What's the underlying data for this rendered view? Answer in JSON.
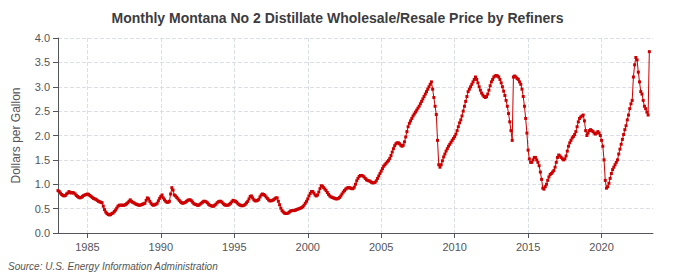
{
  "chart_data": {
    "type": "line",
    "title": "Monthly Montana No 2 Distillate Wholesale/Resale Price by Refiners",
    "ylabel": "Dollars per Gallon",
    "annotation": "Source: U.S. Energy Information Administration",
    "color": "#cc0000",
    "marker": "square",
    "line_style": "solid",
    "grid": true,
    "xlim": [
      1983,
      2023.5
    ],
    "xticks": [
      1985,
      1990,
      1995,
      2000,
      2005,
      2010,
      2015,
      2020
    ],
    "ylim": [
      0.0,
      4.0
    ],
    "yticks": [
      {
        "value": 0.0,
        "label": "0.0"
      },
      0.5,
      {
        "value": 1.0,
        "label": "1.0"
      },
      1.5,
      {
        "value": 2.0,
        "label": "2.0"
      },
      2.5,
      {
        "value": 3.0,
        "label": "3.0"
      },
      3.5,
      {
        "value": 4.0,
        "label": "4.0"
      }
    ],
    "x": [
      1983.0,
      1983.083,
      1983.167,
      1983.25,
      1983.333,
      1983.417,
      1983.5,
      1983.583,
      1983.667,
      1983.75,
      1983.833,
      1983.917,
      1984.0,
      1984.083,
      1984.167,
      1984.25,
      1984.333,
      1984.417,
      1984.5,
      1984.583,
      1984.667,
      1984.75,
      1984.833,
      1984.917,
      1985.0,
      1985.083,
      1985.167,
      1985.25,
      1985.333,
      1985.417,
      1985.5,
      1985.583,
      1985.667,
      1985.75,
      1985.833,
      1985.917,
      1986.0,
      1986.083,
      1986.167,
      1986.25,
      1986.333,
      1986.417,
      1986.5,
      1986.583,
      1986.667,
      1986.75,
      1986.833,
      1986.917,
      1987.0,
      1987.083,
      1987.167,
      1987.25,
      1987.333,
      1987.417,
      1987.5,
      1987.583,
      1987.667,
      1987.75,
      1987.833,
      1987.917,
      1988.0,
      1988.083,
      1988.167,
      1988.25,
      1988.333,
      1988.417,
      1988.5,
      1988.583,
      1988.667,
      1988.75,
      1988.833,
      1988.917,
      1989.0,
      1989.083,
      1989.167,
      1989.25,
      1989.333,
      1989.417,
      1989.5,
      1989.583,
      1989.667,
      1989.75,
      1989.833,
      1989.917,
      1990.0,
      1990.083,
      1990.167,
      1990.25,
      1990.333,
      1990.417,
      1990.5,
      1990.583,
      1990.667,
      1990.75,
      1990.833,
      1990.917,
      1991.0,
      1991.083,
      1991.167,
      1991.25,
      1991.333,
      1991.417,
      1991.5,
      1991.583,
      1991.667,
      1991.75,
      1991.833,
      1991.917,
      1992.0,
      1992.083,
      1992.167,
      1992.25,
      1992.333,
      1992.417,
      1992.5,
      1992.583,
      1992.667,
      1992.75,
      1992.833,
      1992.917,
      1993.0,
      1993.083,
      1993.167,
      1993.25,
      1993.333,
      1993.417,
      1993.5,
      1993.583,
      1993.667,
      1993.75,
      1993.833,
      1993.917,
      1994.0,
      1994.083,
      1994.167,
      1994.25,
      1994.333,
      1994.417,
      1994.5,
      1994.583,
      1994.667,
      1994.75,
      1994.833,
      1994.917,
      1995.0,
      1995.083,
      1995.167,
      1995.25,
      1995.333,
      1995.417,
      1995.5,
      1995.583,
      1995.667,
      1995.75,
      1995.833,
      1995.917,
      1996.0,
      1996.083,
      1996.167,
      1996.25,
      1996.333,
      1996.417,
      1996.5,
      1996.583,
      1996.667,
      1996.75,
      1996.833,
      1996.917,
      1997.0,
      1997.083,
      1997.167,
      1997.25,
      1997.333,
      1997.417,
      1997.5,
      1997.583,
      1997.667,
      1997.75,
      1997.833,
      1997.917,
      1998.0,
      1998.083,
      1998.167,
      1998.25,
      1998.333,
      1998.417,
      1998.5,
      1998.583,
      1998.667,
      1998.75,
      1998.833,
      1998.917,
      1999.0,
      1999.083,
      1999.167,
      1999.25,
      1999.333,
      1999.417,
      1999.5,
      1999.583,
      1999.667,
      1999.75,
      1999.833,
      1999.917,
      2000.0,
      2000.083,
      2000.167,
      2000.25,
      2000.333,
      2000.417,
      2000.5,
      2000.583,
      2000.667,
      2000.75,
      2000.833,
      2000.917,
      2001.0,
      2001.083,
      2001.167,
      2001.25,
      2001.333,
      2001.417,
      2001.5,
      2001.583,
      2001.667,
      2001.75,
      2001.833,
      2001.917,
      2002.0,
      2002.083,
      2002.167,
      2002.25,
      2002.333,
      2002.417,
      2002.5,
      2002.583,
      2002.667,
      2002.75,
      2002.833,
      2002.917,
      2003.0,
      2003.083,
      2003.167,
      2003.25,
      2003.333,
      2003.417,
      2003.5,
      2003.583,
      2003.667,
      2003.75,
      2003.833,
      2003.917,
      2004.0,
      2004.083,
      2004.167,
      2004.25,
      2004.333,
      2004.417,
      2004.5,
      2004.583,
      2004.667,
      2004.75,
      2004.833,
      2004.917,
      2005.0,
      2005.083,
      2005.167,
      2005.25,
      2005.333,
      2005.417,
      2005.5,
      2005.583,
      2005.667,
      2005.75,
      2005.833,
      2005.917,
      2006.0,
      2006.083,
      2006.167,
      2006.25,
      2006.333,
      2006.417,
      2006.5,
      2006.583,
      2006.667,
      2006.75,
      2006.833,
      2006.917,
      2007.0,
      2007.083,
      2007.167,
      2007.25,
      2007.333,
      2007.417,
      2007.5,
      2007.583,
      2007.667,
      2007.75,
      2007.833,
      2007.917,
      2008.0,
      2008.083,
      2008.167,
      2008.25,
      2008.333,
      2008.417,
      2008.5,
      2008.583,
      2008.667,
      2008.75,
      2008.833,
      2008.917,
      2009.0,
      2009.083,
      2009.167,
      2009.25,
      2009.333,
      2009.417,
      2009.5,
      2009.583,
      2009.667,
      2009.75,
      2009.833,
      2009.917,
      2010.0,
      2010.083,
      2010.167,
      2010.25,
      2010.333,
      2010.417,
      2010.5,
      2010.583,
      2010.667,
      2010.75,
      2010.833,
      2010.917,
      2011.0,
      2011.083,
      2011.167,
      2011.25,
      2011.333,
      2011.417,
      2011.5,
      2011.583,
      2011.667,
      2011.75,
      2011.833,
      2011.917,
      2012.0,
      2012.083,
      2012.167,
      2012.25,
      2012.333,
      2012.417,
      2012.5,
      2012.583,
      2012.667,
      2012.75,
      2012.833,
      2012.917,
      2013.0,
      2013.083,
      2013.167,
      2013.25,
      2013.333,
      2013.417,
      2013.5,
      2013.583,
      2013.667,
      2013.75,
      2013.833,
      2013.917,
      2014.0,
      2014.083,
      2014.167,
      2014.25,
      2014.333,
      2014.417,
      2014.5,
      2014.583,
      2014.667,
      2014.75,
      2014.833,
      2014.917,
      2015.0,
      2015.083,
      2015.167,
      2015.25,
      2015.333,
      2015.417,
      2015.5,
      2015.583,
      2015.667,
      2015.75,
      2015.833,
      2015.917,
      2016.0,
      2016.083,
      2016.167,
      2016.25,
      2016.333,
      2016.417,
      2016.5,
      2016.583,
      2016.667,
      2016.75,
      2016.833,
      2016.917,
      2017.0,
      2017.083,
      2017.167,
      2017.25,
      2017.333,
      2017.417,
      2017.5,
      2017.583,
      2017.667,
      2017.75,
      2017.833,
      2017.917,
      2018.0,
      2018.083,
      2018.167,
      2018.25,
      2018.333,
      2018.417,
      2018.5,
      2018.583,
      2018.667,
      2018.75,
      2018.833,
      2018.917,
      2019.0,
      2019.083,
      2019.167,
      2019.25,
      2019.333,
      2019.417,
      2019.5,
      2019.583,
      2019.667,
      2019.75,
      2019.833,
      2019.917,
      2020.0,
      2020.083,
      2020.167,
      2020.25,
      2020.333,
      2020.417,
      2020.5,
      2020.583,
      2020.667,
      2020.75,
      2020.833,
      2020.917,
      2021.0,
      2021.083,
      2021.167,
      2021.25,
      2021.333,
      2021.417,
      2021.5,
      2021.583,
      2021.667,
      2021.75,
      2021.833,
      2021.917,
      2022.0,
      2022.083,
      2022.167,
      2022.25,
      2022.333,
      2022.417,
      2022.5,
      2022.583,
      2022.667,
      2022.75,
      2022.833,
      2022.917,
      2023.0,
      2023.083,
      2023.167,
      2023.25
    ],
    "values": [
      0.87,
      0.85,
      0.82,
      0.79,
      0.77,
      0.76,
      0.77,
      0.8,
      0.82,
      0.85,
      0.83,
      0.82,
      0.83,
      0.82,
      0.8,
      0.77,
      0.75,
      0.73,
      0.72,
      0.73,
      0.75,
      0.77,
      0.78,
      0.79,
      0.8,
      0.79,
      0.77,
      0.75,
      0.73,
      0.71,
      0.7,
      0.69,
      0.67,
      0.65,
      0.64,
      0.63,
      0.62,
      0.55,
      0.48,
      0.43,
      0.4,
      0.38,
      0.37,
      0.38,
      0.4,
      0.41,
      0.44,
      0.47,
      0.51,
      0.55,
      0.57,
      0.57,
      0.57,
      0.57,
      0.57,
      0.58,
      0.6,
      0.62,
      0.65,
      0.68,
      0.65,
      0.63,
      0.62,
      0.6,
      0.59,
      0.58,
      0.57,
      0.57,
      0.58,
      0.59,
      0.6,
      0.61,
      0.67,
      0.72,
      0.7,
      0.65,
      0.61,
      0.58,
      0.57,
      0.58,
      0.59,
      0.61,
      0.66,
      0.71,
      0.75,
      0.78,
      0.72,
      0.68,
      0.65,
      0.63,
      0.63,
      0.65,
      0.8,
      0.93,
      0.88,
      0.78,
      0.76,
      0.73,
      0.7,
      0.67,
      0.64,
      0.62,
      0.61,
      0.62,
      0.63,
      0.65,
      0.67,
      0.68,
      0.68,
      0.66,
      0.63,
      0.6,
      0.59,
      0.58,
      0.57,
      0.57,
      0.59,
      0.61,
      0.63,
      0.65,
      0.65,
      0.64,
      0.62,
      0.59,
      0.57,
      0.56,
      0.55,
      0.55,
      0.57,
      0.59,
      0.62,
      0.64,
      0.65,
      0.65,
      0.63,
      0.6,
      0.58,
      0.57,
      0.57,
      0.57,
      0.59,
      0.61,
      0.64,
      0.67,
      0.66,
      0.65,
      0.63,
      0.6,
      0.58,
      0.57,
      0.56,
      0.56,
      0.57,
      0.59,
      0.62,
      0.65,
      0.7,
      0.75,
      0.76,
      0.72,
      0.68,
      0.66,
      0.66,
      0.67,
      0.69,
      0.74,
      0.78,
      0.8,
      0.79,
      0.77,
      0.74,
      0.71,
      0.68,
      0.66,
      0.66,
      0.67,
      0.68,
      0.7,
      0.72,
      0.72,
      0.65,
      0.58,
      0.51,
      0.46,
      0.43,
      0.41,
      0.4,
      0.4,
      0.41,
      0.43,
      0.45,
      0.46,
      0.46,
      0.46,
      0.47,
      0.48,
      0.49,
      0.5,
      0.51,
      0.52,
      0.54,
      0.57,
      0.61,
      0.65,
      0.7,
      0.76,
      0.81,
      0.85,
      0.85,
      0.82,
      0.78,
      0.76,
      0.78,
      0.84,
      0.91,
      0.97,
      0.96,
      0.93,
      0.9,
      0.87,
      0.83,
      0.79,
      0.76,
      0.74,
      0.73,
      0.72,
      0.71,
      0.7,
      0.7,
      0.71,
      0.73,
      0.76,
      0.8,
      0.84,
      0.87,
      0.9,
      0.92,
      0.93,
      0.93,
      0.92,
      0.91,
      0.91,
      0.94,
      1.0,
      1.07,
      1.12,
      1.16,
      1.18,
      1.18,
      1.17,
      1.15,
      1.12,
      1.09,
      1.08,
      1.07,
      1.06,
      1.04,
      1.03,
      1.03,
      1.04,
      1.07,
      1.12,
      1.17,
      1.22,
      1.27,
      1.32,
      1.37,
      1.4,
      1.43,
      1.46,
      1.49,
      1.53,
      1.59,
      1.66,
      1.73,
      1.79,
      1.83,
      1.85,
      1.85,
      1.83,
      1.8,
      1.78,
      1.8,
      1.87,
      1.97,
      2.08,
      2.18,
      2.25,
      2.3,
      2.35,
      2.4,
      2.44,
      2.48,
      2.52,
      2.56,
      2.6,
      2.65,
      2.7,
      2.75,
      2.8,
      2.85,
      2.9,
      2.95,
      3.0,
      3.05,
      3.1,
      2.95,
      2.78,
      2.6,
      2.43,
      1.9,
      1.4,
      1.35,
      1.4,
      1.48,
      1.56,
      1.62,
      1.68,
      1.73,
      1.78,
      1.82,
      1.86,
      1.9,
      1.94,
      1.98,
      2.03,
      2.1,
      2.18,
      2.26,
      2.32,
      2.4,
      2.5,
      2.6,
      2.7,
      2.8,
      2.9,
      2.95,
      3.0,
      3.05,
      3.1,
      3.15,
      3.2,
      3.15,
      3.08,
      3.0,
      2.93,
      2.87,
      2.83,
      2.8,
      2.78,
      2.8,
      2.85,
      2.93,
      3.02,
      3.1,
      3.15,
      3.2,
      3.22,
      3.23,
      3.22,
      3.2,
      3.15,
      3.08,
      3.0,
      2.91,
      2.82,
      2.72,
      2.6,
      2.45,
      2.28,
      2.1,
      1.9,
      3.2,
      3.22,
      3.2,
      3.17,
      3.15,
      3.1,
      3.05,
      2.95,
      2.8,
      2.6,
      2.35,
      2.05,
      1.7,
      1.52,
      1.45,
      1.45,
      1.5,
      1.55,
      1.55,
      1.5,
      1.45,
      1.38,
      1.25,
      1.1,
      0.92,
      0.9,
      0.95,
      1.0,
      1.08,
      1.15,
      1.2,
      1.22,
      1.25,
      1.28,
      1.35,
      1.45,
      1.55,
      1.6,
      1.58,
      1.55,
      1.52,
      1.5,
      1.52,
      1.58,
      1.68,
      1.78,
      1.85,
      1.9,
      1.95,
      1.98,
      2.02,
      2.08,
      2.18,
      2.28,
      2.35,
      2.38,
      2.4,
      2.42,
      2.3,
      2.1,
      2.0,
      2.05,
      2.1,
      2.12,
      2.1,
      2.08,
      2.05,
      2.03,
      2.05,
      2.08,
      2.05,
      2.0,
      1.9,
      1.78,
      1.5,
      1.08,
      0.92,
      0.95,
      1.02,
      1.12,
      1.22,
      1.3,
      1.35,
      1.4,
      1.45,
      1.5,
      1.62,
      1.72,
      1.82,
      1.92,
      2.02,
      2.12,
      2.2,
      2.32,
      2.42,
      2.55,
      2.65,
      2.72,
      3.2,
      3.45,
      3.6,
      3.55,
      3.3,
      3.1,
      2.9,
      2.85,
      2.72,
      2.6,
      2.55,
      2.48,
      2.42,
      3.72
    ]
  }
}
